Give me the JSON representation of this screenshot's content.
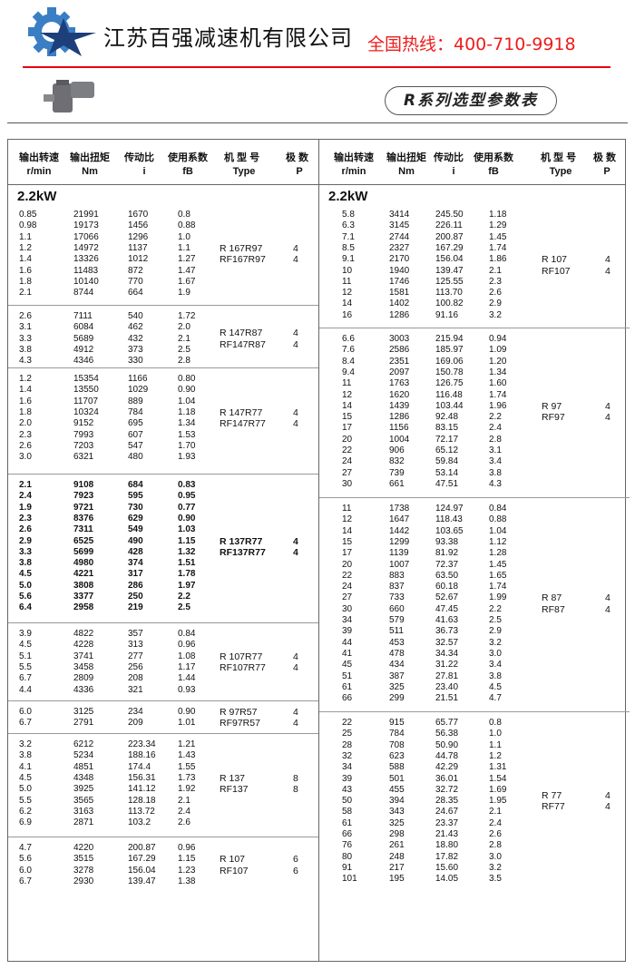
{
  "header": {
    "company": "江苏百强减速机有限公司",
    "hotline": "全国热线：400-710-9918",
    "title": "R系列选型参数表",
    "logo_icon": "gear-star-logo",
    "product_image": "gearmotor-image",
    "accent": "#e60012",
    "logo_color": "#2f6fb3"
  },
  "columns": {
    "speed": "输出转速",
    "speed_unit": "r/min",
    "torque": "输出扭矩",
    "torque_unit": "Nm",
    "ratio": "传动比",
    "ratio_unit": "i",
    "fb": "使用系数",
    "fb_unit": "fB",
    "type": "机 型 号",
    "type_unit": "Type",
    "poles": "极 数",
    "poles_unit": "P"
  },
  "left": {
    "power": "2.2kW",
    "groups": [
      {
        "rows": [
          [
            "0.85",
            "21991",
            "1670",
            "0.8"
          ],
          [
            "0.98",
            "19173",
            "1456",
            "0.88"
          ],
          [
            "1.1",
            "17066",
            "1296",
            "1.0"
          ],
          [
            "1.2",
            "14972",
            "1137",
            "1.1"
          ],
          [
            "1.4",
            "13326",
            "1012",
            "1.27"
          ],
          [
            "1.6",
            "11483",
            "872",
            "1.47"
          ],
          [
            "1.8",
            "10140",
            "770",
            "1.67"
          ],
          [
            "2.1",
            "8744",
            "664",
            "1.9"
          ]
        ],
        "types": [
          "R  167R97",
          "RF167R97"
        ],
        "poles": [
          "4",
          "4"
        ]
      },
      {
        "rows": [
          [
            "2.6",
            "7111",
            "540",
            "1.72"
          ],
          [
            "3.1",
            "6084",
            "462",
            "2.0"
          ],
          [
            "3.3",
            "5689",
            "432",
            "2.1"
          ],
          [
            "3.8",
            "4912",
            "373",
            "2.5"
          ],
          [
            "4.3",
            "4346",
            "330",
            "2.8"
          ]
        ],
        "types": [
          "R  147R87",
          "RF147R87"
        ],
        "poles": [
          "4",
          "4"
        ]
      },
      {
        "rows": [
          [
            "1.2",
            "15354",
            "1166",
            "0.80"
          ],
          [
            "1.4",
            "13550",
            "1029",
            "0.90"
          ],
          [
            "1.6",
            "11707",
            "889",
            "1.04"
          ],
          [
            "1.8",
            "10324",
            "784",
            "1.18"
          ],
          [
            "2.0",
            "9152",
            "695",
            "1.34"
          ],
          [
            "2.3",
            "7993",
            "607",
            "1.53"
          ],
          [
            "2.6",
            "7203",
            "547",
            "1.70"
          ],
          [
            "3.0",
            "6321",
            "480",
            "1.93"
          ]
        ],
        "types": [
          "R  147R77",
          "RF147R77"
        ],
        "poles": [
          "4",
          "4"
        ]
      },
      {
        "rows": [
          [
            "2.1",
            "9108",
            "684",
            "0.83"
          ],
          [
            "2.4",
            "7923",
            "595",
            "0.95"
          ],
          [
            "1.9",
            "9721",
            "730",
            "0.77"
          ],
          [
            "2.3",
            "8376",
            "629",
            "0.90"
          ],
          [
            "2.6",
            "7311",
            "549",
            "1.03"
          ],
          [
            "2.9",
            "6525",
            "490",
            "1.15"
          ],
          [
            "3.3",
            "5699",
            "428",
            "1.32"
          ],
          [
            "3.8",
            "4980",
            "374",
            "1.51"
          ],
          [
            "4.5",
            "4221",
            "317",
            "1.78"
          ],
          [
            "5.0",
            "3808",
            "286",
            "1.97"
          ],
          [
            "5.6",
            "3377",
            "250",
            "2.2"
          ],
          [
            "6.4",
            "2958",
            "219",
            "2.5"
          ]
        ],
        "types": [
          "R  137R77",
          "RF137R77"
        ],
        "poles": [
          "4",
          "4"
        ]
      },
      {
        "rows": [
          [
            "3.9",
            "4822",
            "357",
            "0.84"
          ],
          [
            "4.5",
            "4228",
            "313",
            "0.96"
          ],
          [
            "5.1",
            "3741",
            "277",
            "1.08"
          ],
          [
            "5.5",
            "3458",
            "256",
            "1.17"
          ],
          [
            "6.7",
            "2809",
            "208",
            "1.44"
          ],
          [
            "4.4",
            "4336",
            "321",
            "0.93"
          ]
        ],
        "types": [
          "R  107R77",
          "RF107R77"
        ],
        "poles": [
          "4",
          "4"
        ]
      },
      {
        "rows": [
          [
            "6.0",
            "3125",
            "234",
            "0.90"
          ],
          [
            "6.7",
            "2791",
            "209",
            "1.01"
          ]
        ],
        "types": [
          "R  97R57",
          "RF97R57"
        ],
        "poles": [
          "4",
          "4"
        ]
      },
      {
        "rows": [
          [
            "3.2",
            "6212",
            "223.34",
            "1.21"
          ],
          [
            "3.8",
            "5234",
            "188.16",
            "1.43"
          ],
          [
            "4.1",
            "4851",
            "174.4",
            "1.55"
          ],
          [
            "4.5",
            "4348",
            "156.31",
            "1.73"
          ],
          [
            "5.0",
            "3925",
            "141.12",
            "1.92"
          ],
          [
            "5.5",
            "3565",
            "128.18",
            "2.1"
          ],
          [
            "6.2",
            "3163",
            "113.72",
            "2.4"
          ],
          [
            "6.9",
            "2871",
            "103.2",
            "2.6"
          ]
        ],
        "types": [
          "R  137",
          "RF137"
        ],
        "poles": [
          "8",
          "8"
        ]
      },
      {
        "rows": [
          [
            "4.7",
            "4220",
            "200.87",
            "0.96"
          ],
          [
            "5.6",
            "3515",
            "167.29",
            "1.15"
          ],
          [
            "6.0",
            "3278",
            "156.04",
            "1.23"
          ],
          [
            "6.7",
            "2930",
            "139.47",
            "1.38"
          ]
        ],
        "types": [
          "R  107",
          "RF107"
        ],
        "poles": [
          "6",
          "6"
        ]
      }
    ]
  },
  "right": {
    "power": "2.2kW",
    "groups": [
      {
        "rows": [
          [
            "5.8",
            "3414",
            "245.50",
            "1.18"
          ],
          [
            "6.3",
            "3145",
            "226.11",
            "1.29"
          ],
          [
            "7.1",
            "2744",
            "200.87",
            "1.45"
          ],
          [
            "8.5",
            "2327",
            "167.29",
            "1.74"
          ],
          [
            "9.1",
            "2170",
            "156.04",
            "1.86"
          ],
          [
            "10",
            "1940",
            "139.47",
            "2.1"
          ],
          [
            "11",
            "1746",
            "125.55",
            "2.3"
          ],
          [
            "12",
            "1581",
            "113.70",
            "2.6"
          ],
          [
            "14",
            "1402",
            "100.82",
            "2.9"
          ],
          [
            "16",
            "1286",
            "91.16",
            "3.2"
          ]
        ],
        "types": [
          "R  107",
          "RF107"
        ],
        "poles": [
          "4",
          "4"
        ]
      },
      {
        "rows": [
          [
            "6.6",
            "3003",
            "215.94",
            "0.94"
          ],
          [
            "7.6",
            "2586",
            "185.97",
            "1.09"
          ],
          [
            "8.4",
            "2351",
            "169.06",
            "1.20"
          ],
          [
            "9.4",
            "2097",
            "150.78",
            "1.34"
          ],
          [
            "11",
            "1763",
            "126.75",
            "1.60"
          ],
          [
            "12",
            "1620",
            "116.48",
            "1.74"
          ],
          [
            "14",
            "1439",
            "103.44",
            "1.96"
          ],
          [
            "15",
            "1286",
            "92.48",
            "2.2"
          ],
          [
            "17",
            "1156",
            "83.15",
            "2.4"
          ],
          [
            "20",
            "1004",
            "72.17",
            "2.8"
          ],
          [
            "22",
            "906",
            "65.12",
            "3.1"
          ],
          [
            "24",
            "832",
            "59.84",
            "3.4"
          ],
          [
            "27",
            "739",
            "53.14",
            "3.8"
          ],
          [
            "30",
            "661",
            "47.51",
            "4.3"
          ]
        ],
        "types": [
          "R  97",
          "RF97"
        ],
        "poles": [
          "4",
          "4"
        ]
      },
      {
        "rows": [
          [
            "11",
            "1738",
            "124.97",
            "0.84"
          ],
          [
            "12",
            "1647",
            "118.43",
            "0.88"
          ],
          [
            "14",
            "1442",
            "103.65",
            "1.04"
          ],
          [
            "15",
            "1299",
            "93.38",
            "1.12"
          ],
          [
            "17",
            "1139",
            "81.92",
            "1.28"
          ],
          [
            "20",
            "1007",
            "72.37",
            "1.45"
          ],
          [
            "22",
            "883",
            "63.50",
            "1.65"
          ],
          [
            "24",
            "837",
            "60.18",
            "1.74"
          ],
          [
            "27",
            "733",
            "52.67",
            "1.99"
          ],
          [
            "30",
            "660",
            "47.45",
            "2.2"
          ],
          [
            "34",
            "579",
            "41.63",
            "2.5"
          ],
          [
            "39",
            "511",
            "36.73",
            "2.9"
          ],
          [
            "44",
            "453",
            "32.57",
            "3.2"
          ],
          [
            "41",
            "478",
            "34.34",
            "3.0"
          ],
          [
            "45",
            "434",
            "31.22",
            "3.4"
          ],
          [
            "51",
            "387",
            "27.81",
            "3.8"
          ],
          [
            "61",
            "325",
            "23.40",
            "4.5"
          ],
          [
            "66",
            "299",
            "21.51",
            "4.7"
          ]
        ],
        "types": [
          "R  87",
          "RF87"
        ],
        "poles": [
          "4",
          "4"
        ]
      },
      {
        "rows": [
          [
            "22",
            "915",
            "65.77",
            "0.8"
          ],
          [
            "25",
            "784",
            "56.38",
            "1.0"
          ],
          [
            "28",
            "708",
            "50.90",
            "1.1"
          ],
          [
            "32",
            "623",
            "44.78",
            "1.2"
          ],
          [
            "34",
            "588",
            "42.29",
            "1.31"
          ],
          [
            "39",
            "501",
            "36.01",
            "1.54"
          ],
          [
            "43",
            "455",
            "32.72",
            "1.69"
          ],
          [
            "50",
            "394",
            "28.35",
            "1.95"
          ],
          [
            "58",
            "343",
            "24.67",
            "2.1"
          ],
          [
            "61",
            "325",
            "23.37",
            "2.4"
          ],
          [
            "66",
            "298",
            "21.43",
            "2.6"
          ],
          [
            "76",
            "261",
            "18.80",
            "2.8"
          ],
          [
            "80",
            "248",
            "17.82",
            "3.0"
          ],
          [
            "91",
            "217",
            "15.60",
            "3.2"
          ],
          [
            "101",
            "195",
            "14.05",
            "3.5"
          ]
        ],
        "types": [
          "R  77",
          "RF77"
        ],
        "poles": [
          "4",
          "4"
        ]
      }
    ]
  }
}
